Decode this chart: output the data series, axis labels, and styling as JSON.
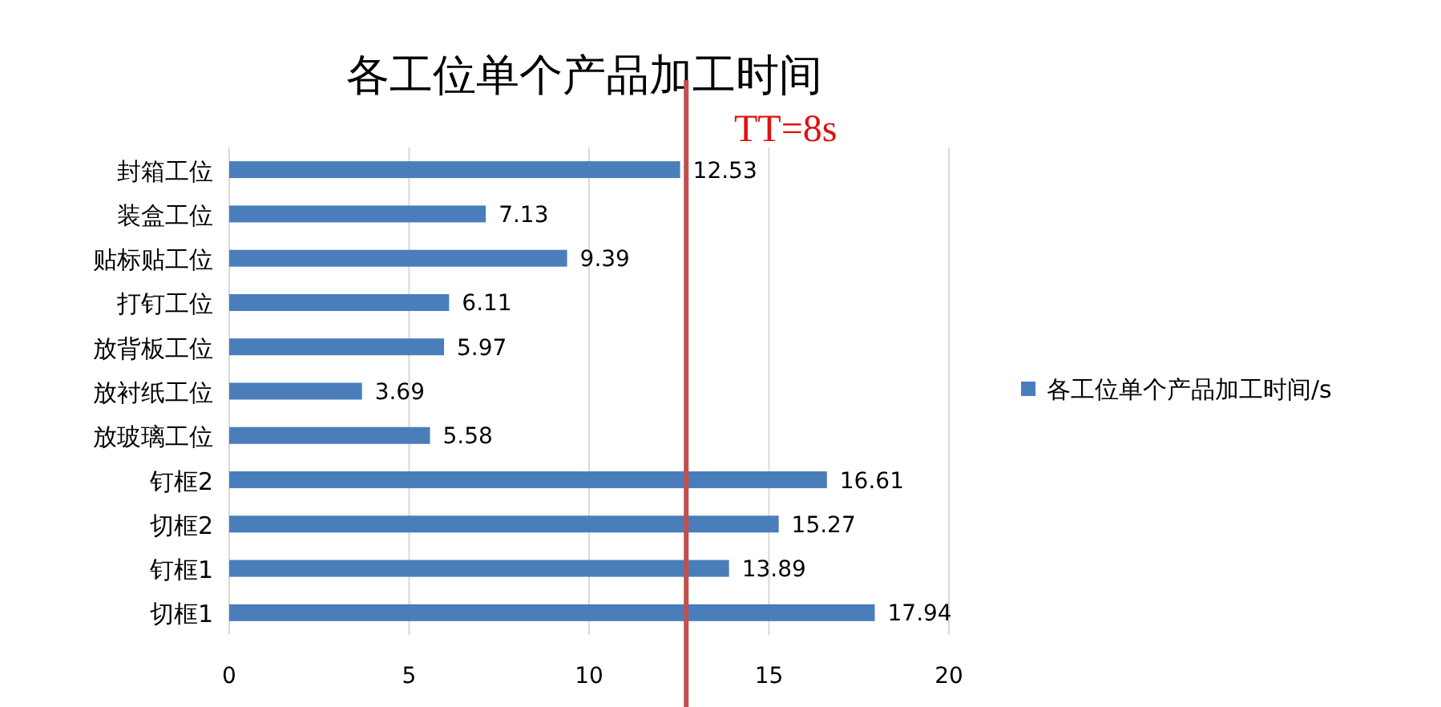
{
  "chart_data": {
    "type": "bar",
    "orientation": "horizontal",
    "title": "各工位单个产品加工时间",
    "categories": [
      "封箱工位",
      "装盒工位",
      "贴标贴工位",
      "打钉工位",
      "放背板工位",
      "放衬纸工位",
      "放玻璃工位",
      "钉框2",
      "切框2",
      "钉框1",
      "切框1"
    ],
    "series": [
      {
        "name": "各工位单个产品加工时间/s",
        "color": "#4a7ebb",
        "values": [
          12.53,
          7.13,
          9.39,
          6.11,
          5.97,
          3.69,
          5.58,
          16.61,
          15.27,
          13.89,
          17.94
        ]
      }
    ],
    "xlim": [
      0,
      20
    ],
    "xticks": [
      0,
      5,
      10,
      15,
      20
    ],
    "grid": "x",
    "legend": "right",
    "data_labels": true,
    "annotations": [
      "TT=8s"
    ],
    "ref_lines": [
      {
        "axis": "x",
        "value": 12.7,
        "color": "#c0504d"
      }
    ]
  }
}
